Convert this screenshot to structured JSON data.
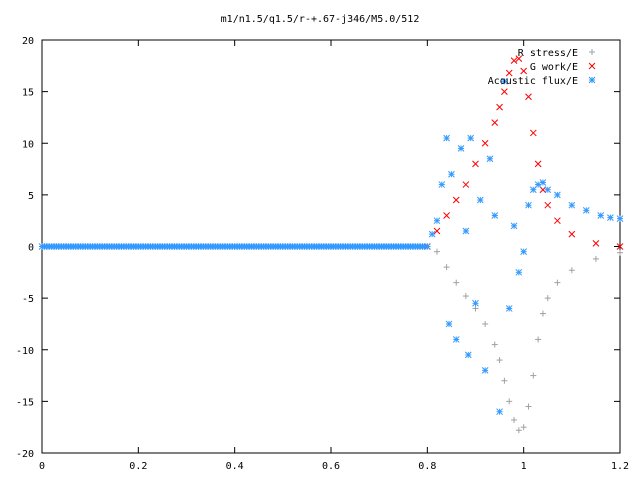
{
  "chart_data": {
    "type": "scatter",
    "title": "m1/n1.5/q1.5/r-+.67-j346/M5.0/512",
    "xlabel": "",
    "ylabel": "",
    "xlim": [
      0,
      1.2
    ],
    "ylim": [
      -20,
      20
    ],
    "grid": false,
    "legend_position": "top-right",
    "x_ticks": [
      "0",
      "0.2",
      "0.4",
      "0.6",
      "0.8",
      "1",
      "1.2"
    ],
    "y_ticks": [
      "20",
      "15",
      "10",
      "5",
      "0",
      "-5",
      "-10",
      "-15",
      "-20"
    ],
    "series": [
      {
        "name": "R stress/E",
        "marker": "plus",
        "color": "#a0a0a0",
        "x": [
          0.8,
          0.82,
          0.84,
          0.86,
          0.88,
          0.9,
          0.92,
          0.94,
          0.95,
          0.96,
          0.97,
          0.98,
          0.99,
          1.0,
          1.01,
          1.02,
          1.03,
          1.04,
          1.05,
          1.07,
          1.1,
          1.15,
          1.2
        ],
        "y": [
          0.0,
          -0.5,
          -2.0,
          -3.5,
          -4.8,
          -6.0,
          -7.5,
          -9.5,
          -11.0,
          -13.0,
          -15.0,
          -16.8,
          -17.8,
          -17.5,
          -15.5,
          -12.5,
          -9.0,
          -6.5,
          -5.0,
          -3.5,
          -2.3,
          -1.2,
          -0.6
        ]
      },
      {
        "name": "G work/E",
        "marker": "x",
        "color": "#ff0000",
        "x": [
          0.8,
          0.82,
          0.84,
          0.86,
          0.88,
          0.9,
          0.92,
          0.94,
          0.95,
          0.96,
          0.97,
          0.98,
          0.99,
          1.0,
          1.01,
          1.02,
          1.03,
          1.04,
          1.05,
          1.07,
          1.1,
          1.15,
          1.2
        ],
        "y": [
          0.0,
          1.5,
          3.0,
          4.5,
          6.0,
          8.0,
          10.0,
          12.0,
          13.5,
          15.0,
          16.8,
          18.0,
          18.2,
          17.0,
          14.5,
          11.0,
          8.0,
          5.5,
          4.0,
          2.5,
          1.2,
          0.3,
          0.0
        ]
      },
      {
        "name": "Acoustic flux/E",
        "marker": "star",
        "color": "#3399ff",
        "x": [
          0.8,
          0.81,
          0.82,
          0.83,
          0.84,
          0.845,
          0.85,
          0.86,
          0.87,
          0.88,
          0.885,
          0.89,
          0.9,
          0.91,
          0.92,
          0.93,
          0.94,
          0.95,
          0.96,
          0.97,
          0.98,
          0.99,
          1.0,
          1.01,
          1.02,
          1.03,
          1.04,
          1.05,
          1.07,
          1.1,
          1.13,
          1.16,
          1.18,
          1.2
        ],
        "y": [
          0.0,
          1.2,
          2.5,
          6.0,
          10.5,
          -7.5,
          7.0,
          -9.0,
          9.5,
          1.5,
          -10.5,
          10.5,
          -5.5,
          4.5,
          -12.0,
          8.5,
          3.0,
          -16.0,
          16.0,
          -6.0,
          2.0,
          -2.5,
          -0.5,
          4.0,
          5.5,
          6.0,
          6.2,
          5.5,
          5.0,
          4.0,
          3.5,
          3.0,
          2.8,
          2.7
        ]
      }
    ]
  }
}
